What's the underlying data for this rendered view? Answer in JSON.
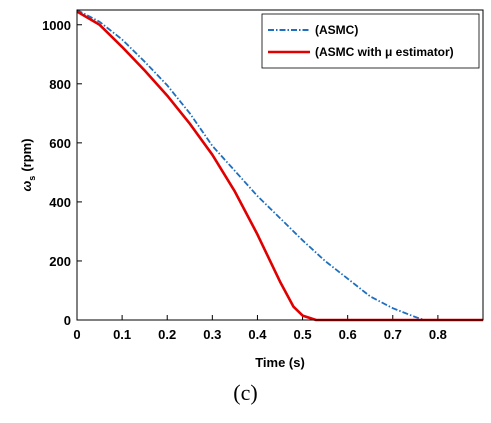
{
  "caption": "(c)",
  "chart_data": {
    "type": "line",
    "xlabel": "Time (s)",
    "ylabel_main": "ω",
    "ylabel_sub": "s",
    "ylabel_unit": "(rpm)",
    "xlim": [
      0,
      0.9
    ],
    "ylim": [
      0,
      1050
    ],
    "xticks": [
      0,
      0.1,
      0.2,
      0.3,
      0.4,
      0.5,
      0.6,
      0.7,
      0.8
    ],
    "xtick_labels": [
      "0",
      "0.1",
      "0.2",
      "0.3",
      "0.4",
      "0.5",
      "0.6",
      "0.7",
      "0.8"
    ],
    "yticks": [
      0,
      200,
      400,
      600,
      800,
      1000
    ],
    "ytick_labels": [
      "0",
      "200",
      "400",
      "600",
      "800",
      "1000"
    ],
    "grid": false,
    "legend_position": "top-right",
    "series": [
      {
        "name": "(ASMC)",
        "color": "#1f6fbf",
        "style": "dash-dot",
        "x": [
          0,
          0.05,
          0.1,
          0.15,
          0.2,
          0.25,
          0.3,
          0.35,
          0.4,
          0.45,
          0.5,
          0.55,
          0.6,
          0.65,
          0.7,
          0.75,
          0.77,
          0.8,
          0.9
        ],
        "y": [
          1050,
          1010,
          950,
          875,
          795,
          700,
          590,
          505,
          420,
          345,
          270,
          200,
          140,
          80,
          40,
          10,
          0,
          0,
          0
        ]
      },
      {
        "name": "(ASMC with μ estimator)",
        "color": "#e00000",
        "style": "solid",
        "x": [
          0,
          0.05,
          0.1,
          0.15,
          0.2,
          0.25,
          0.3,
          0.35,
          0.4,
          0.45,
          0.48,
          0.5,
          0.53,
          0.6,
          0.7,
          0.8,
          0.9
        ],
        "y": [
          1045,
          1000,
          925,
          845,
          760,
          665,
          560,
          435,
          290,
          130,
          45,
          15,
          0,
          0,
          0,
          0,
          0
        ]
      }
    ]
  }
}
